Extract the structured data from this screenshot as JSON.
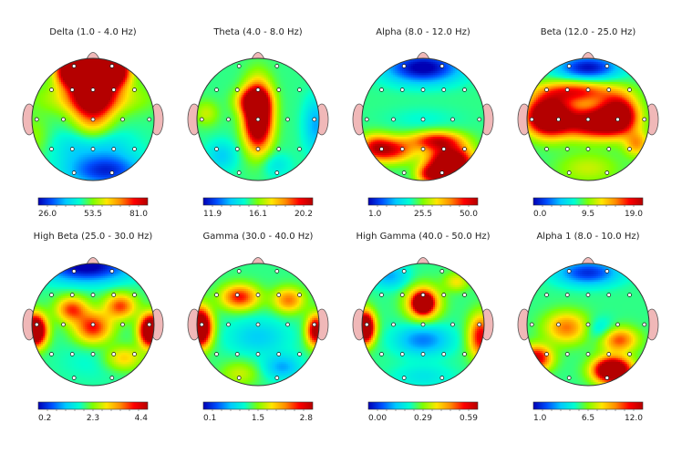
{
  "colorbar_colors": [
    "#0000b4",
    "#0050ff",
    "#00c8ff",
    "#00ffd0",
    "#7fff00",
    "#ffe600",
    "#ff8c00",
    "#ff0000",
    "#b40000"
  ],
  "panels": [
    {
      "title": "Delta (1.0 - 4.0 Hz)",
      "ticks": [
        "26.0",
        "53.5",
        "81.0"
      ],
      "blobs": [
        [
          0,
          -0.85,
          0.32,
          0.85,
          1.0
        ],
        [
          -0.35,
          -0.8,
          0.25,
          0.25,
          0.8
        ],
        [
          0.35,
          -0.8,
          0.25,
          0.25,
          0.8
        ],
        [
          0,
          -0.35,
          0.8,
          0.25,
          0.25
        ],
        [
          0,
          0.45,
          0.6,
          0.3,
          -0.2
        ],
        [
          0.2,
          0.85,
          0.6,
          0.25,
          -0.35
        ],
        [
          -0.95,
          0.3,
          0.25,
          0.35,
          0.1
        ]
      ]
    },
    {
      "title": "Theta (4.0 - 8.0 Hz)",
      "ticks": [
        "11.9",
        "16.1",
        "20.2"
      ],
      "blobs": [
        [
          0,
          -0.05,
          0.22,
          0.5,
          0.95
        ],
        [
          -0.1,
          -0.3,
          0.25,
          0.2,
          0.4
        ],
        [
          0.95,
          0.1,
          0.2,
          0.45,
          -0.2
        ],
        [
          -0.6,
          0.6,
          0.25,
          0.25,
          -0.15
        ],
        [
          0.3,
          0.75,
          0.25,
          0.2,
          -0.1
        ],
        [
          -0.85,
          -0.1,
          0.2,
          0.2,
          0.15
        ]
      ]
    },
    {
      "title": "Alpha (8.0 - 12.0 Hz)",
      "ticks": [
        "1.0",
        "25.5",
        "50.0"
      ],
      "blobs": [
        [
          0.45,
          0.75,
          0.35,
          0.3,
          0.95
        ],
        [
          0.1,
          0.9,
          0.2,
          0.15,
          0.35
        ],
        [
          -0.5,
          0.5,
          0.35,
          0.2,
          0.45
        ],
        [
          0.2,
          0.35,
          0.4,
          0.15,
          0.45
        ],
        [
          -0.8,
          0.45,
          0.25,
          0.2,
          0.35
        ],
        [
          0,
          -0.85,
          0.6,
          0.25,
          -0.45
        ],
        [
          0,
          0,
          0.6,
          0.2,
          -0.05
        ]
      ]
    },
    {
      "title": "Beta (12.0 - 25.0 Hz)",
      "ticks": [
        "0.0",
        "9.5",
        "19.0"
      ],
      "blobs": [
        [
          -0.65,
          -0.05,
          0.35,
          0.3,
          0.95
        ],
        [
          0.1,
          0.05,
          0.5,
          0.25,
          0.7
        ],
        [
          -0.2,
          -0.45,
          0.6,
          0.18,
          0.45
        ],
        [
          0.5,
          -0.1,
          0.3,
          0.3,
          0.65
        ],
        [
          0,
          -0.85,
          0.5,
          0.2,
          -0.4
        ],
        [
          0,
          0.8,
          0.5,
          0.25,
          0.15
        ],
        [
          0.8,
          0.4,
          0.2,
          0.2,
          0.3
        ]
      ]
    },
    {
      "title": "High Beta (25.0 - 30.0 Hz)",
      "ticks": [
        "0.2",
        "2.3",
        "4.4"
      ],
      "blobs": [
        [
          -0.95,
          0.1,
          0.18,
          0.25,
          0.95
        ],
        [
          0.95,
          0.1,
          0.18,
          0.25,
          0.95
        ],
        [
          -0.1,
          -0.95,
          0.7,
          0.25,
          -0.45
        ],
        [
          0,
          0.05,
          0.3,
          0.25,
          0.45
        ],
        [
          -0.35,
          -0.25,
          0.25,
          0.2,
          0.4
        ],
        [
          0.45,
          -0.3,
          0.25,
          0.2,
          0.4
        ],
        [
          0,
          0.6,
          0.6,
          0.35,
          -0.05
        ],
        [
          0.5,
          0.55,
          0.3,
          0.2,
          0.25
        ]
      ]
    },
    {
      "title": "Gamma (30.0 - 40.0 Hz)",
      "ticks": [
        "0.1",
        "1.5",
        "2.8"
      ],
      "blobs": [
        [
          -0.95,
          0.05,
          0.18,
          0.3,
          0.95
        ],
        [
          0.95,
          0.1,
          0.15,
          0.25,
          0.65
        ],
        [
          -0.3,
          -0.45,
          0.3,
          0.2,
          0.45
        ],
        [
          0.5,
          -0.4,
          0.25,
          0.2,
          0.35
        ],
        [
          0,
          0.2,
          0.5,
          0.3,
          -0.15
        ],
        [
          -0.3,
          0.8,
          0.3,
          0.2,
          0.15
        ],
        [
          0.4,
          0.7,
          0.3,
          0.2,
          -0.2
        ]
      ]
    },
    {
      "title": "High Gamma (40.0 - 50.0 Hz)",
      "ticks": [
        "0.00",
        "0.29",
        "0.59"
      ],
      "blobs": [
        [
          0,
          -0.35,
          0.12,
          0.12,
          0.95
        ],
        [
          0,
          -0.35,
          0.26,
          0.26,
          0.55
        ],
        [
          -0.95,
          0.05,
          0.15,
          0.25,
          0.95
        ],
        [
          0.95,
          0.2,
          0.2,
          0.35,
          0.5
        ],
        [
          0,
          0.25,
          0.45,
          0.25,
          -0.25
        ],
        [
          -0.55,
          -0.8,
          0.3,
          0.2,
          -0.2
        ],
        [
          0,
          0.85,
          0.5,
          0.2,
          -0.1
        ],
        [
          0.55,
          -0.7,
          0.2,
          0.15,
          0.2
        ]
      ]
    },
    {
      "title": "Alpha 1 (8.0 - 10.0 Hz)",
      "ticks": [
        "1.0",
        "6.5",
        "12.0"
      ],
      "blobs": [
        [
          0.4,
          0.75,
          0.3,
          0.2,
          0.95
        ],
        [
          -0.85,
          0.55,
          0.25,
          0.2,
          0.55
        ],
        [
          0,
          -0.85,
          0.5,
          0.2,
          -0.35
        ],
        [
          0.5,
          0.25,
          0.3,
          0.2,
          0.4
        ],
        [
          -0.35,
          0.05,
          0.35,
          0.25,
          0.35
        ],
        [
          0.2,
          0.1,
          0.25,
          0.2,
          -0.15
        ]
      ]
    }
  ]
}
